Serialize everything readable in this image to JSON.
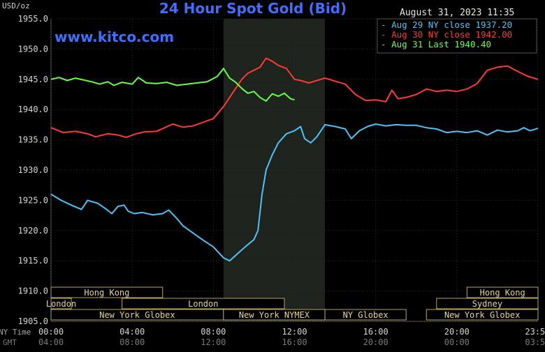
{
  "chart_data": {
    "type": "line",
    "title": "24 Hour Spot Gold (Bid)",
    "unit_label": "USD/oz",
    "datetime": "August 31, 2023 11:35",
    "watermark": "www.kitco.com",
    "ylim": [
      1905,
      1955
    ],
    "yticks": [
      "1955.0",
      "1950.0",
      "1945.0",
      "1940.0",
      "1935.0",
      "1930.0",
      "1925.0",
      "1920.0",
      "1915.0",
      "1910.0",
      "1905.0"
    ],
    "ytick_values": [
      1955,
      1950,
      1945,
      1940,
      1935,
      1930,
      1925,
      1920,
      1915,
      1910,
      1905
    ],
    "xlim": [
      0,
      24
    ],
    "x_row_labels": [
      "NY Time",
      "GMT"
    ],
    "xticks_ny": [
      "00:00",
      "04:00",
      "08:00",
      "12:00",
      "16:00",
      "20:00",
      "23:59"
    ],
    "xticks_gmt": [
      "04:00",
      "08:00",
      "12:00",
      "16:00",
      "20:00",
      "00:00",
      "03:59"
    ],
    "xtick_hours": [
      0,
      4,
      8,
      12,
      16,
      20,
      23.98
    ],
    "highlight_hours": [
      8.5,
      13.5
    ],
    "legend": [
      {
        "label": "Aug 29 NY close 1937.20",
        "color": "#4fc3f7"
      },
      {
        "label": "Aug 30 NY close 1942.00",
        "color": "#ff3b2f"
      },
      {
        "label": "Aug 31 Last 1940.40",
        "color": "#66ff44"
      }
    ],
    "sessions": [
      {
        "label": "Hong Kong",
        "start": 0,
        "end": 5.5,
        "row": 0
      },
      {
        "label": "Hong Kong",
        "start": 20.5,
        "end": 24,
        "row": 0
      },
      {
        "label": "London",
        "start": 0,
        "end": 1,
        "row": 1
      },
      {
        "label": "London",
        "start": 3.5,
        "end": 11.5,
        "row": 1
      },
      {
        "label": "Sydney",
        "start": 19,
        "end": 24,
        "row": 1
      },
      {
        "label": "New York Globex",
        "start": 0,
        "end": 8.5,
        "row": 2
      },
      {
        "label": "New York NYMEX",
        "start": 8.5,
        "end": 13.5,
        "row": 2
      },
      {
        "label": "NY Globex",
        "start": 13.5,
        "end": 17.5,
        "row": 2
      },
      {
        "label": "New York Globex",
        "start": 18.5,
        "end": 24,
        "row": 2
      }
    ],
    "series": [
      {
        "name": "Aug 29",
        "color": "#4fc3f7",
        "points": [
          [
            0,
            1926
          ],
          [
            0.5,
            1925
          ],
          [
            1,
            1924.2
          ],
          [
            1.5,
            1923.5
          ],
          [
            1.8,
            1925
          ],
          [
            2.3,
            1924.5
          ],
          [
            2.7,
            1923.6
          ],
          [
            3,
            1922.8
          ],
          [
            3.3,
            1924
          ],
          [
            3.6,
            1924.2
          ],
          [
            3.8,
            1923.2
          ],
          [
            4.1,
            1922.8
          ],
          [
            4.5,
            1923
          ],
          [
            5,
            1922.6
          ],
          [
            5.5,
            1922.8
          ],
          [
            5.8,
            1923.4
          ],
          [
            6.2,
            1922
          ],
          [
            6.5,
            1920.8
          ],
          [
            7,
            1919.6
          ],
          [
            7.5,
            1918.4
          ],
          [
            8,
            1917.3
          ],
          [
            8.5,
            1915.5
          ],
          [
            8.8,
            1915
          ],
          [
            9.2,
            1916.2
          ],
          [
            9.6,
            1917.4
          ],
          [
            10,
            1918.5
          ],
          [
            10.2,
            1920
          ],
          [
            10.4,
            1926
          ],
          [
            10.6,
            1930
          ],
          [
            10.9,
            1932.5
          ],
          [
            11.2,
            1934.5
          ],
          [
            11.6,
            1936
          ],
          [
            12,
            1936.5
          ],
          [
            12.3,
            1937.2
          ],
          [
            12.5,
            1935.2
          ],
          [
            12.8,
            1934.5
          ],
          [
            13.1,
            1935.5
          ],
          [
            13.5,
            1937.5
          ],
          [
            14,
            1937.2
          ],
          [
            14.5,
            1936.8
          ],
          [
            14.8,
            1935.2
          ],
          [
            15.2,
            1936.5
          ],
          [
            15.6,
            1937.2
          ],
          [
            16,
            1937.6
          ],
          [
            16.5,
            1937.3
          ],
          [
            17,
            1937.5
          ],
          [
            17.5,
            1937.4
          ],
          [
            18,
            1937.4
          ],
          [
            18.5,
            1937
          ],
          [
            19,
            1936.8
          ],
          [
            19.5,
            1936.2
          ],
          [
            20,
            1936.4
          ],
          [
            20.5,
            1936.2
          ],
          [
            21,
            1936.5
          ],
          [
            21.5,
            1935.8
          ],
          [
            22,
            1936.6
          ],
          [
            22.5,
            1936.3
          ],
          [
            23,
            1936.5
          ],
          [
            23.3,
            1937
          ],
          [
            23.6,
            1936.5
          ],
          [
            24,
            1936.9
          ]
        ]
      },
      {
        "name": "Aug 30",
        "color": "#ff3b2f",
        "points": [
          [
            0,
            1937
          ],
          [
            0.6,
            1936.2
          ],
          [
            1.2,
            1936.4
          ],
          [
            1.8,
            1936
          ],
          [
            2.2,
            1935.5
          ],
          [
            2.8,
            1936
          ],
          [
            3.3,
            1935.8
          ],
          [
            3.7,
            1935.4
          ],
          [
            4.2,
            1936
          ],
          [
            4.6,
            1936.3
          ],
          [
            5.2,
            1936.4
          ],
          [
            5.6,
            1937
          ],
          [
            6,
            1937.6
          ],
          [
            6.5,
            1937.1
          ],
          [
            7,
            1937.3
          ],
          [
            7.5,
            1937.9
          ],
          [
            8,
            1938.5
          ],
          [
            8.5,
            1940.5
          ],
          [
            8.8,
            1942
          ],
          [
            9.1,
            1943.5
          ],
          [
            9.4,
            1945
          ],
          [
            9.7,
            1946
          ],
          [
            10,
            1946.5
          ],
          [
            10.3,
            1947
          ],
          [
            10.6,
            1948.5
          ],
          [
            10.9,
            1948
          ],
          [
            11.2,
            1947.3
          ],
          [
            11.6,
            1946.8
          ],
          [
            12,
            1945
          ],
          [
            12.3,
            1944.8
          ],
          [
            12.7,
            1944.4
          ],
          [
            13,
            1944.7
          ],
          [
            13.5,
            1945.2
          ],
          [
            14,
            1944.7
          ],
          [
            14.5,
            1944.2
          ],
          [
            15,
            1942.5
          ],
          [
            15.5,
            1941.5
          ],
          [
            16,
            1941.6
          ],
          [
            16.5,
            1941.3
          ],
          [
            16.8,
            1943.2
          ],
          [
            17.1,
            1941.8
          ],
          [
            17.5,
            1942
          ],
          [
            18,
            1942.5
          ],
          [
            18.5,
            1943.4
          ],
          [
            19,
            1943
          ],
          [
            19.5,
            1943.2
          ],
          [
            20,
            1943
          ],
          [
            20.5,
            1943.4
          ],
          [
            21,
            1944.3
          ],
          [
            21.5,
            1946.5
          ],
          [
            22,
            1947
          ],
          [
            22.5,
            1947.2
          ],
          [
            23,
            1946.3
          ],
          [
            23.5,
            1945.5
          ],
          [
            24,
            1945
          ]
        ]
      },
      {
        "name": "Aug 31",
        "color": "#66ff44",
        "points": [
          [
            0,
            1945
          ],
          [
            0.4,
            1945.3
          ],
          [
            0.8,
            1944.8
          ],
          [
            1.2,
            1945.2
          ],
          [
            1.6,
            1944.9
          ],
          [
            2,
            1944.6
          ],
          [
            2.4,
            1944.2
          ],
          [
            2.8,
            1944.6
          ],
          [
            3.1,
            1944
          ],
          [
            3.5,
            1944.5
          ],
          [
            4,
            1944.2
          ],
          [
            4.3,
            1945.3
          ],
          [
            4.7,
            1944.4
          ],
          [
            5.2,
            1944.3
          ],
          [
            5.7,
            1944.5
          ],
          [
            6.2,
            1944
          ],
          [
            6.7,
            1944.2
          ],
          [
            7.2,
            1944.4
          ],
          [
            7.7,
            1944.6
          ],
          [
            8.2,
            1945.5
          ],
          [
            8.5,
            1946.8
          ],
          [
            8.8,
            1945.2
          ],
          [
            9.1,
            1944.5
          ],
          [
            9.4,
            1943.5
          ],
          [
            9.7,
            1942.7
          ],
          [
            10,
            1943
          ],
          [
            10.3,
            1942
          ],
          [
            10.6,
            1941.4
          ],
          [
            10.9,
            1942.6
          ],
          [
            11.2,
            1942.2
          ],
          [
            11.5,
            1942.7
          ],
          [
            11.8,
            1941.8
          ],
          [
            12,
            1941.6
          ]
        ]
      }
    ]
  }
}
